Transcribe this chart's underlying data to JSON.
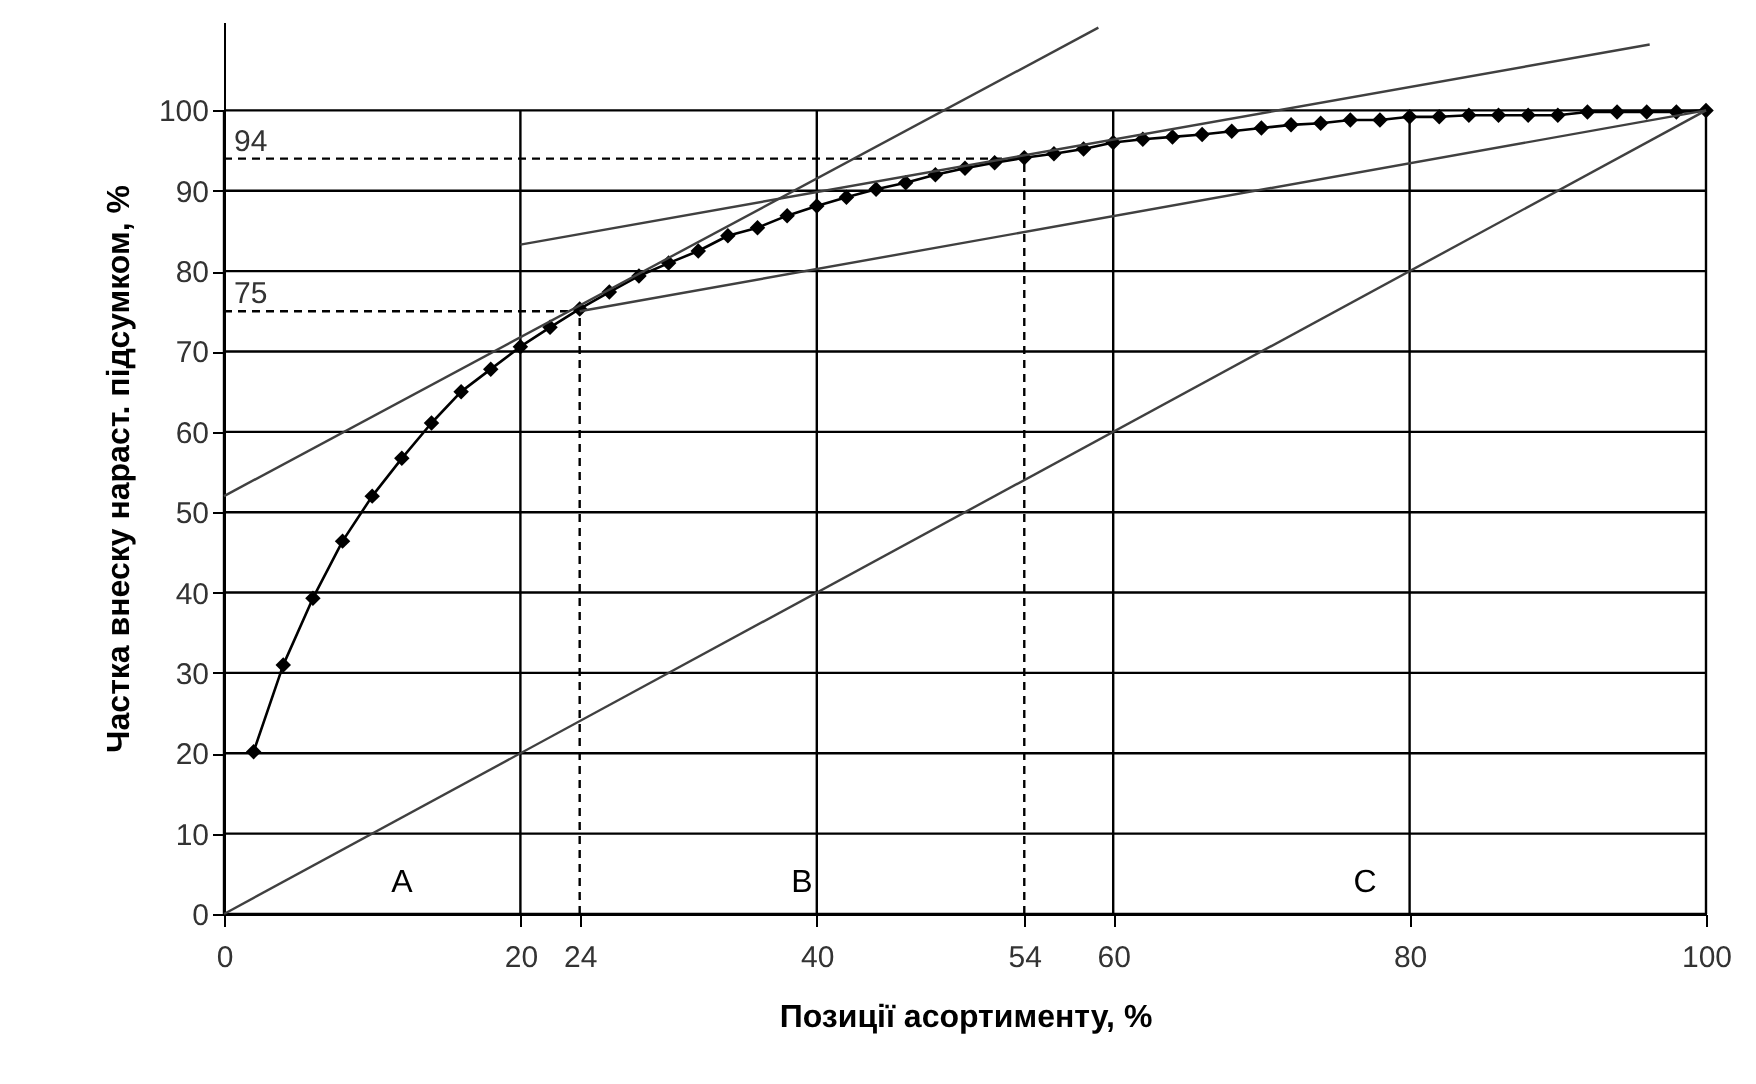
{
  "chart_data": {
    "type": "line",
    "xlabel": "Позиції асортименту, %",
    "ylabel": "Частка внеску нараст. підсумком, %",
    "xlim": [
      0,
      100
    ],
    "ylim": [
      0,
      111
    ],
    "xticks": [
      0,
      20,
      40,
      60,
      80,
      100
    ],
    "yticks": [
      0,
      10,
      20,
      30,
      40,
      50,
      60,
      70,
      80,
      90,
      100
    ],
    "grid": true,
    "marker": "diamond",
    "series": [
      {
        "type": "line",
        "color": "#000000",
        "x": [
          2,
          4,
          6,
          8,
          10,
          12,
          14,
          16,
          18,
          20,
          22,
          24,
          26,
          28,
          30,
          32,
          34,
          36,
          38,
          40,
          42,
          44,
          46,
          48,
          50,
          52,
          54,
          56,
          58,
          60,
          62,
          64,
          66,
          68,
          70,
          72,
          74,
          76,
          78,
          80,
          82,
          84,
          86,
          88,
          90,
          92,
          94,
          96,
          98,
          100
        ],
        "values": [
          20.2,
          31,
          39.3,
          46.4,
          52,
          56.7,
          61.1,
          65,
          67.8,
          70.6,
          73,
          75.3,
          77.4,
          79.4,
          81,
          82.5,
          84.4,
          85.4,
          86.9,
          88.1,
          89.2,
          90.2,
          91,
          92,
          92.8,
          93.5,
          94.1,
          94.6,
          95.2,
          96,
          96.4,
          96.7,
          97,
          97.4,
          97.8,
          98.2,
          98.4,
          98.8,
          98.8,
          99.2,
          99.2,
          99.4,
          99.4,
          99.4,
          99.4,
          99.8,
          99.8,
          99.8,
          99.8,
          100
        ]
      },
      {
        "type": "line",
        "color": "#404040",
        "marker": "none",
        "x": [
          0,
          59
        ],
        "values": [
          52,
          110.3
        ]
      },
      {
        "type": "line",
        "color": "#404040",
        "marker": "none",
        "x": [
          20,
          96.2
        ],
        "values": [
          83.3,
          108.2
        ]
      },
      {
        "type": "line",
        "color": "#404040",
        "marker": "none",
        "x": [
          24,
          100
        ],
        "values": [
          75,
          100
        ]
      },
      {
        "type": "line",
        "color": "#404040",
        "marker": "none",
        "x": [
          0,
          100
        ],
        "values": [
          0,
          100
        ]
      }
    ],
    "ref_lines": [
      {
        "axis": "x",
        "value": 24,
        "label": "24",
        "line_style": "dashed"
      },
      {
        "axis": "y",
        "value": 75,
        "label": "75",
        "line_style": "dashed"
      },
      {
        "axis": "x",
        "value": 54,
        "label": "54",
        "line_style": "dashed"
      },
      {
        "axis": "y",
        "value": 94,
        "label": "94",
        "line_style": "dashed"
      }
    ],
    "annotations": [
      "A",
      "B",
      "C"
    ]
  }
}
